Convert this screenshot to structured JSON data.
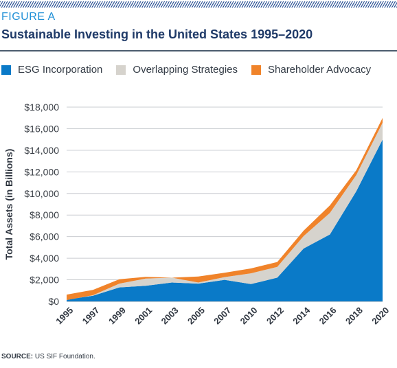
{
  "header": {
    "figure_label": "FIGURE A",
    "title": "Sustainable Investing in the United States 1995–2020"
  },
  "legend": [
    {
      "label": "ESG Incorporation",
      "color": "#0a7ac8"
    },
    {
      "label": "Overlapping Strategies",
      "color": "#d6d3cd"
    },
    {
      "label": "Shareholder Advocacy",
      "color": "#f0832a"
    }
  ],
  "source": {
    "prefix": "SOURCE:",
    "text": " US SIF Foundation."
  },
  "chart_data": {
    "type": "area",
    "stacked": true,
    "title": "Sustainable Investing in the United States 1995–2020",
    "xlabel": "",
    "ylabel": "Total Assets (in Billions)",
    "categories": [
      "1995",
      "1997",
      "1999",
      "2001",
      "2003",
      "2005",
      "2007",
      "2010",
      "2012",
      "2014",
      "2016",
      "2018",
      "2020"
    ],
    "series": [
      {
        "name": "ESG Incorporation",
        "color": "#0a7ac8",
        "values": [
          160,
          530,
          1300,
          1450,
          1750,
          1650,
          2000,
          1600,
          2200,
          4900,
          6200,
          10200,
          15000
        ]
      },
      {
        "name": "Overlapping Strategies",
        "color": "#d6d3cd",
        "values": [
          -30,
          40,
          350,
          670,
          450,
          100,
          250,
          1000,
          1000,
          1150,
          2000,
          1500,
          1550
        ]
      },
      {
        "name": "Shareholder Advocacy",
        "color": "#f0832a",
        "values": [
          500,
          500,
          400,
          150,
          0,
          550,
          400,
          450,
          450,
          500,
          700,
          450,
          450
        ]
      }
    ],
    "ylim": [
      0,
      18000
    ],
    "yticks": [
      "$0",
      "$2,000",
      "$4,000",
      "$6,000",
      "$8,000",
      "$10,000",
      "$12,000",
      "$14,000",
      "$16,000",
      "$18,000"
    ],
    "grid": true,
    "legend_position": "top"
  }
}
